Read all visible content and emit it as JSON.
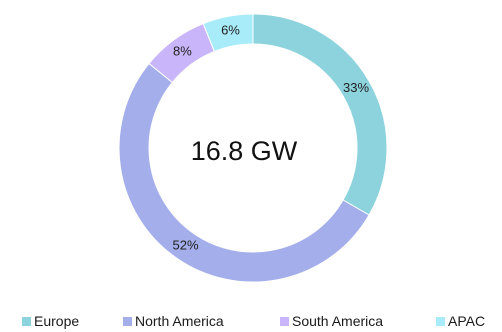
{
  "chart_data": {
    "type": "pie",
    "variant": "donut",
    "center_label": "16.8 GW",
    "slices": [
      {
        "label": "Europe",
        "value": 33,
        "value_label": "33%",
        "color": "#8dd3dd"
      },
      {
        "label": "North America",
        "value": 52,
        "value_label": "52%",
        "color": "#a3aeea"
      },
      {
        "label": "South America",
        "value": 8,
        "value_label": "8%",
        "color": "#c9b5f9"
      },
      {
        "label": "APAC",
        "value": 6,
        "value_label": "6%",
        "color": "#a7ecf8"
      }
    ],
    "legend_position": "bottom"
  }
}
